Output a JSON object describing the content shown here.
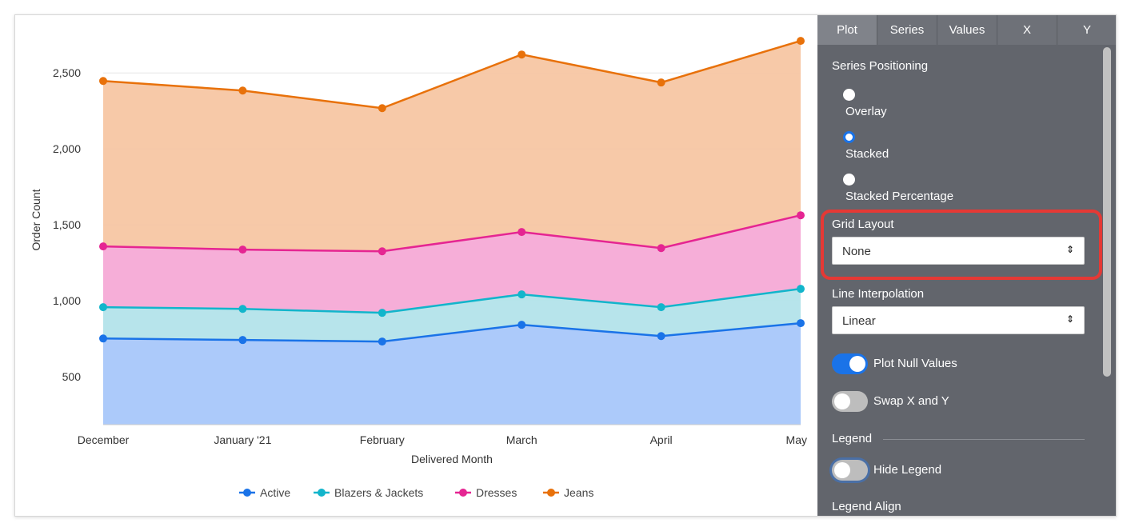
{
  "chart_data": {
    "type": "area",
    "stacked": true,
    "categories": [
      "December",
      "January '21",
      "February",
      "March",
      "April",
      "May"
    ],
    "xlabel": "Delivered Month",
    "ylabel": "Order Count",
    "yticks": [
      500,
      1000,
      1500,
      2000,
      2500
    ],
    "ytick_labels": [
      "500",
      "1,000",
      "1,500",
      "2,000",
      "2,500"
    ],
    "ylim": [
      185,
      2880
    ],
    "grid": true,
    "legend_position": "bottom",
    "series": [
      {
        "name": "Active",
        "color": "#1a73e8",
        "fill": "#a8c7fa",
        "values": [
          752,
          742,
          732,
          842,
          768,
          853
        ]
      },
      {
        "name": "Blazers & Jackets",
        "color": "#12b5cb",
        "fill": "#b3e3ea",
        "values": [
          206,
          205,
          189,
          200,
          190,
          226
        ]
      },
      {
        "name": "Dresses",
        "color": "#e52592",
        "fill": "#f6aad6",
        "values": [
          400,
          390,
          405,
          411,
          389,
          484
        ]
      },
      {
        "name": "Jeans",
        "color": "#e8710a",
        "fill": "#f7c6a3",
        "values": [
          1089,
          1047,
          942,
          1168,
          1090,
          1148
        ]
      }
    ]
  },
  "panel": {
    "tabs": [
      "Plot",
      "Series",
      "Values",
      "X",
      "Y"
    ],
    "active_tab": "Plot",
    "series_positioning": {
      "label": "Series Positioning",
      "options": [
        "Overlay",
        "Stacked",
        "Stacked Percentage"
      ],
      "selected": "Stacked"
    },
    "grid_layout": {
      "label": "Grid Layout",
      "value": "None"
    },
    "line_interpolation": {
      "label": "Line Interpolation",
      "value": "Linear"
    },
    "plot_null_values": {
      "label": "Plot Null Values",
      "on": true
    },
    "swap_xy": {
      "label": "Swap X and Y",
      "on": false
    },
    "legend_heading": "Legend",
    "hide_legend": {
      "label": "Hide Legend",
      "on": false
    },
    "legend_align_label": "Legend Align",
    "accent": "#1a73e8",
    "highlight": "#e53935"
  }
}
